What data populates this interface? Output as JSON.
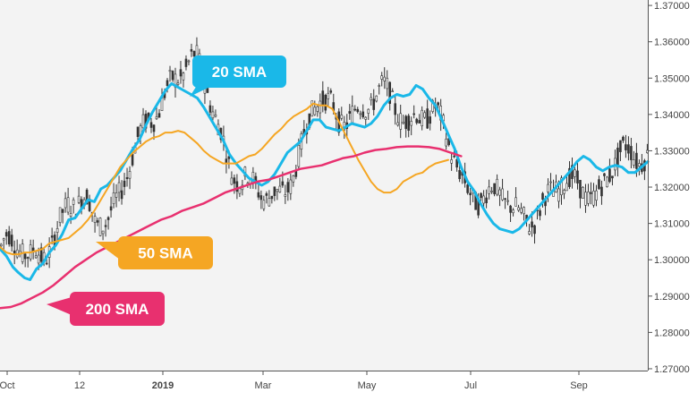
{
  "chart_data": {
    "type": "line",
    "ylim": [
      1.2695,
      1.3715
    ],
    "y_ticks": [
      "1.27000",
      "1.28000",
      "1.29000",
      "1.30000",
      "1.31000",
      "1.32000",
      "1.33000",
      "1.34000",
      "1.35000",
      "1.36000",
      "1.37000"
    ],
    "y_tick_values": [
      1.27,
      1.28,
      1.29,
      1.3,
      1.31,
      1.32,
      1.33,
      1.34,
      1.35,
      1.36,
      1.37
    ],
    "x_ticks": [
      "Oct",
      "12",
      "2019",
      "Mar",
      "May",
      "Jul",
      "Sep"
    ],
    "grid": false,
    "colors": {
      "sma20": "#1ab8e8",
      "sma50": "#f5a623",
      "sma200": "#e8306f",
      "candles": "#333333",
      "plot_bg": "#f3f3f3"
    },
    "series": [
      {
        "name": "20 SMA",
        "values": [
          [
            0,
            1.303
          ],
          [
            6,
            1.301
          ],
          [
            12,
            1.298
          ],
          [
            17,
            1.2965
          ],
          [
            23,
            1.295
          ],
          [
            28,
            1.2945
          ],
          [
            34,
            1.2975
          ],
          [
            40,
            1.299
          ],
          [
            46,
            1.302
          ],
          [
            52,
            1.304
          ],
          [
            58,
            1.307
          ],
          [
            64,
            1.311
          ],
          [
            70,
            1.3115
          ],
          [
            76,
            1.314
          ],
          [
            82,
            1.3165
          ],
          [
            88,
            1.316
          ],
          [
            94,
            1.3195
          ],
          [
            100,
            1.3205
          ],
          [
            106,
            1.3225
          ],
          [
            112,
            1.3245
          ],
          [
            118,
            1.3275
          ],
          [
            124,
            1.3305
          ],
          [
            130,
            1.333
          ],
          [
            136,
            1.337
          ],
          [
            142,
            1.3405
          ],
          [
            148,
            1.3435
          ],
          [
            154,
            1.3465
          ],
          [
            160,
            1.3485
          ],
          [
            166,
            1.3475
          ],
          [
            172,
            1.3465
          ],
          [
            178,
            1.3455
          ],
          [
            184,
            1.3445
          ],
          [
            190,
            1.342
          ],
          [
            196,
            1.339
          ],
          [
            202,
            1.336
          ],
          [
            208,
            1.333
          ],
          [
            214,
            1.329
          ],
          [
            220,
            1.3265
          ],
          [
            226,
            1.3245
          ],
          [
            232,
            1.3225
          ],
          [
            238,
            1.3215
          ],
          [
            244,
            1.3205
          ],
          [
            250,
            1.3215
          ],
          [
            256,
            1.3235
          ],
          [
            262,
            1.3265
          ],
          [
            268,
            1.3295
          ],
          [
            274,
            1.331
          ],
          [
            280,
            1.3325
          ],
          [
            286,
            1.3355
          ],
          [
            292,
            1.3385
          ],
          [
            298,
            1.3385
          ],
          [
            304,
            1.3365
          ],
          [
            310,
            1.336
          ],
          [
            316,
            1.3355
          ],
          [
            322,
            1.3365
          ],
          [
            328,
            1.3375
          ],
          [
            334,
            1.337
          ],
          [
            340,
            1.3365
          ],
          [
            346,
            1.3375
          ],
          [
            352,
            1.3395
          ],
          [
            358,
            1.3425
          ],
          [
            364,
            1.3445
          ],
          [
            370,
            1.3455
          ],
          [
            376,
            1.345
          ],
          [
            382,
            1.3455
          ],
          [
            388,
            1.348
          ],
          [
            394,
            1.347
          ],
          [
            400,
            1.3445
          ],
          [
            406,
            1.3425
          ],
          [
            412,
            1.3385
          ],
          [
            418,
            1.3345
          ],
          [
            424,
            1.3305
          ],
          [
            430,
            1.3255
          ],
          [
            436,
            1.3215
          ],
          [
            442,
            1.319
          ],
          [
            448,
            1.3155
          ],
          [
            454,
            1.3125
          ],
          [
            460,
            1.31
          ],
          [
            466,
            1.3085
          ],
          [
            472,
            1.308
          ],
          [
            478,
            1.3075
          ],
          [
            484,
            1.3085
          ],
          [
            490,
            1.3105
          ],
          [
            496,
            1.3125
          ],
          [
            502,
            1.3145
          ],
          [
            508,
            1.3165
          ],
          [
            514,
            1.3185
          ],
          [
            520,
            1.3205
          ],
          [
            526,
            1.3225
          ],
          [
            532,
            1.3245
          ],
          [
            538,
            1.327
          ],
          [
            544,
            1.3285
          ],
          [
            550,
            1.3275
          ],
          [
            556,
            1.3255
          ],
          [
            562,
            1.3245
          ],
          [
            568,
            1.3255
          ],
          [
            574,
            1.326
          ],
          [
            580,
            1.3255
          ],
          [
            586,
            1.324
          ],
          [
            592,
            1.324
          ],
          [
            598,
            1.3255
          ],
          [
            604,
            1.327
          ]
        ]
      },
      {
        "name": "50 SMA",
        "values": [
          [
            0,
            1.3035
          ],
          [
            6,
            1.302
          ],
          [
            12,
            1.3015
          ],
          [
            17,
            1.3015
          ],
          [
            23,
            1.302
          ],
          [
            28,
            1.302
          ],
          [
            34,
            1.3025
          ],
          [
            40,
            1.303
          ],
          [
            46,
            1.3045
          ],
          [
            52,
            1.305
          ],
          [
            58,
            1.3055
          ],
          [
            64,
            1.306
          ],
          [
            70,
            1.3075
          ],
          [
            76,
            1.309
          ],
          [
            82,
            1.311
          ],
          [
            88,
            1.3135
          ],
          [
            94,
            1.3165
          ],
          [
            100,
            1.3195
          ],
          [
            106,
            1.3225
          ],
          [
            112,
            1.3255
          ],
          [
            118,
            1.3275
          ],
          [
            124,
            1.3295
          ],
          [
            130,
            1.331
          ],
          [
            136,
            1.3325
          ],
          [
            142,
            1.3335
          ],
          [
            148,
            1.334
          ],
          [
            154,
            1.335
          ],
          [
            160,
            1.335
          ],
          [
            166,
            1.3355
          ],
          [
            172,
            1.335
          ],
          [
            178,
            1.3335
          ],
          [
            184,
            1.332
          ],
          [
            190,
            1.33
          ],
          [
            196,
            1.3285
          ],
          [
            202,
            1.3275
          ],
          [
            208,
            1.3265
          ],
          [
            214,
            1.3265
          ],
          [
            220,
            1.3265
          ],
          [
            226,
            1.3275
          ],
          [
            232,
            1.3285
          ],
          [
            238,
            1.329
          ],
          [
            244,
            1.3305
          ],
          [
            250,
            1.3325
          ],
          [
            256,
            1.3345
          ],
          [
            262,
            1.336
          ],
          [
            268,
            1.338
          ],
          [
            274,
            1.3395
          ],
          [
            280,
            1.3405
          ],
          [
            286,
            1.3415
          ],
          [
            292,
            1.343
          ],
          [
            298,
            1.3425
          ],
          [
            304,
            1.3425
          ],
          [
            310,
            1.3415
          ],
          [
            316,
            1.338
          ],
          [
            322,
            1.3345
          ],
          [
            328,
            1.331
          ],
          [
            334,
            1.3275
          ],
          [
            340,
            1.3245
          ],
          [
            346,
            1.3215
          ],
          [
            352,
            1.3195
          ],
          [
            358,
            1.3185
          ],
          [
            364,
            1.3185
          ],
          [
            370,
            1.3195
          ],
          [
            376,
            1.3215
          ],
          [
            382,
            1.3225
          ],
          [
            388,
            1.3235
          ],
          [
            394,
            1.324
          ],
          [
            400,
            1.3255
          ],
          [
            406,
            1.3265
          ],
          [
            412,
            1.327
          ],
          [
            418,
            1.3275
          ]
        ]
      },
      {
        "name": "200 SMA",
        "values": [
          [
            0,
            1.2867
          ],
          [
            10,
            1.287
          ],
          [
            20,
            1.288
          ],
          [
            30,
            1.2895
          ],
          [
            40,
            1.291
          ],
          [
            50,
            1.293
          ],
          [
            60,
            1.2955
          ],
          [
            70,
            1.298
          ],
          [
            80,
            1.3
          ],
          [
            90,
            1.302
          ],
          [
            100,
            1.3035
          ],
          [
            110,
            1.305
          ],
          [
            120,
            1.3065
          ],
          [
            130,
            1.308
          ],
          [
            140,
            1.3095
          ],
          [
            150,
            1.311
          ],
          [
            160,
            1.312
          ],
          [
            170,
            1.3135
          ],
          [
            180,
            1.3145
          ],
          [
            190,
            1.3155
          ],
          [
            200,
            1.317
          ],
          [
            210,
            1.3185
          ],
          [
            220,
            1.3195
          ],
          [
            230,
            1.3205
          ],
          [
            240,
            1.3215
          ],
          [
            250,
            1.322
          ],
          [
            260,
            1.323
          ],
          [
            270,
            1.324
          ],
          [
            280,
            1.325
          ],
          [
            290,
            1.3255
          ],
          [
            300,
            1.326
          ],
          [
            310,
            1.327
          ],
          [
            320,
            1.328
          ],
          [
            330,
            1.3285
          ],
          [
            340,
            1.3295
          ],
          [
            350,
            1.3302
          ],
          [
            360,
            1.3305
          ],
          [
            370,
            1.331
          ],
          [
            380,
            1.3312
          ],
          [
            390,
            1.3312
          ],
          [
            400,
            1.331
          ],
          [
            410,
            1.3305
          ],
          [
            420,
            1.3295
          ],
          [
            430,
            1.3285
          ]
        ]
      }
    ],
    "labels": [
      {
        "text": "20 SMA"
      },
      {
        "text": "50 SMA"
      },
      {
        "text": "200 SMA"
      }
    ]
  }
}
